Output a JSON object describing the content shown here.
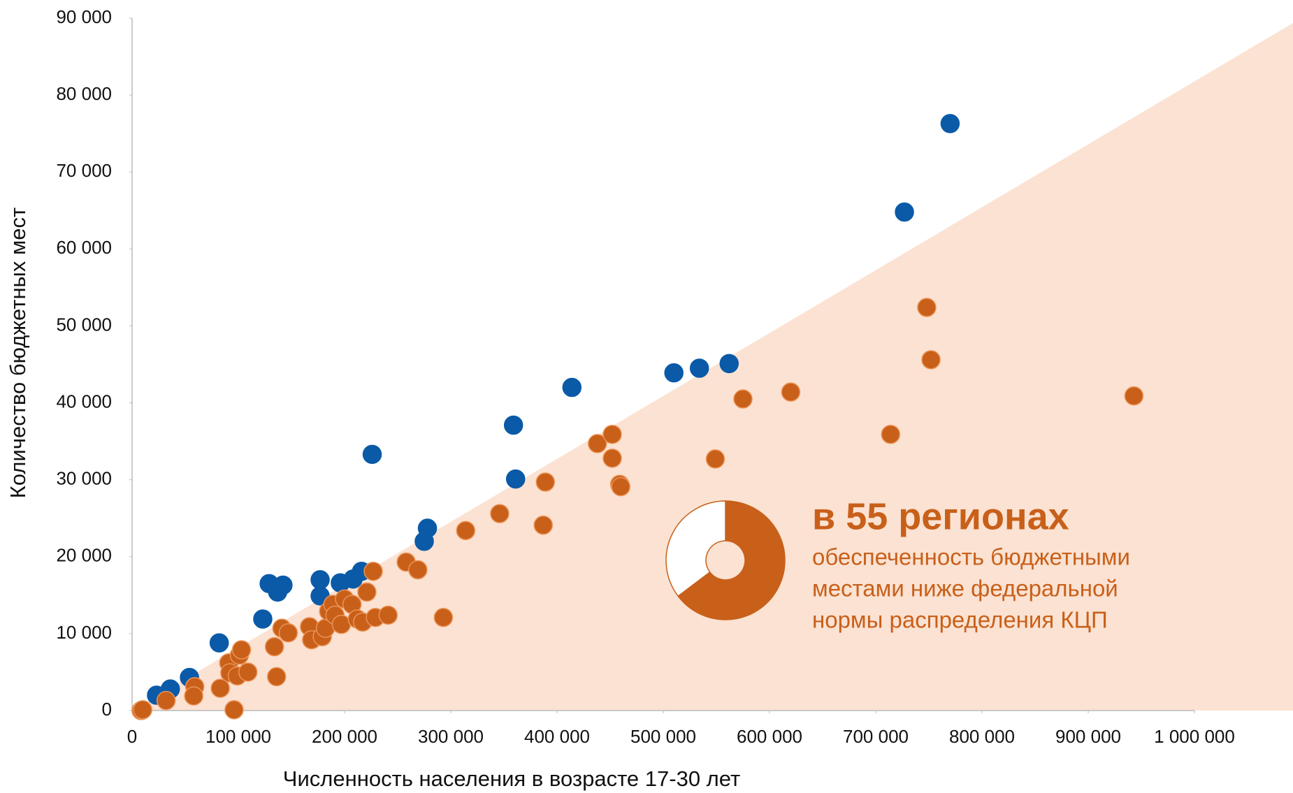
{
  "chart_data": {
    "type": "scatter",
    "x_label": "Численность населения в возрасте 17-30 лет",
    "y_label": "Количество бюджетных мест",
    "xlim": [
      0,
      1000000
    ],
    "ylim": [
      0,
      90000
    ],
    "xticks": [
      0,
      {
        "value": 100000,
        "label": "100 000"
      },
      {
        "value": 200000,
        "label": "200 000"
      },
      {
        "value": 300000,
        "label": "300 000"
      },
      {
        "value": 400000,
        "label": "400 000"
      },
      {
        "value": 500000,
        "label": "500 000"
      },
      {
        "value": 600000,
        "label": "600 000"
      },
      {
        "value": 700000,
        "label": "700 000"
      },
      {
        "value": 800000,
        "label": "800 000"
      },
      {
        "value": 900000,
        "label": "900 000"
      },
      {
        "value": 1000000,
        "label": "1 000 000"
      }
    ],
    "yticks": [
      0,
      {
        "value": 10000,
        "label": "10 000"
      },
      {
        "value": 20000,
        "label": "20 000"
      },
      {
        "value": 30000,
        "label": "30 000"
      },
      {
        "value": 40000,
        "label": "40 000"
      },
      {
        "value": 50000,
        "label": "50 000"
      },
      {
        "value": 60000,
        "label": "60 000"
      },
      {
        "value": 70000,
        "label": "70 000"
      },
      {
        "value": 80000,
        "label": "80 000"
      },
      {
        "value": 90000,
        "label": "90 000"
      }
    ],
    "series": [
      {
        "color": "#0a5aa8",
        "stroke": "#0a5aa8",
        "x": [
          23000,
          36000,
          54000,
          82000,
          123000,
          129000,
          137000,
          142000,
          177000,
          177000,
          196000,
          208000,
          216000,
          226000,
          275000,
          278000,
          359000,
          361000,
          414000,
          510000,
          534000,
          562000,
          727000,
          770000
        ],
        "values": [
          2000,
          2800,
          4300,
          8800,
          11900,
          16500,
          15400,
          16300,
          17000,
          14900,
          16600,
          17100,
          18100,
          33300,
          22000,
          23700,
          37100,
          30100,
          42000,
          43900,
          44500,
          45100,
          64800,
          76300
        ]
      },
      {
        "color": "#c8601a",
        "stroke": "#ec9356",
        "x": [
          8500,
          10000,
          32000,
          59000,
          58000,
          83000,
          91000,
          92000,
          96000,
          99000,
          101000,
          103000,
          109000,
          134000,
          136000,
          141000,
          147000,
          167000,
          169000,
          179000,
          182000,
          185000,
          189000,
          191000,
          197000,
          200000,
          207000,
          212000,
          217000,
          221000,
          227000,
          229000,
          241000,
          258000,
          269000,
          293000,
          314000,
          346000,
          387000,
          389000,
          438000,
          452000,
          452000,
          459000,
          460000,
          549000,
          575000,
          620000,
          714000,
          748000,
          752000,
          943000
        ],
        "values": [
          0,
          100,
          1300,
          3100,
          1900,
          2900,
          6200,
          4900,
          100,
          4500,
          7200,
          7900,
          5000,
          8300,
          4400,
          10700,
          10100,
          10900,
          9200,
          9600,
          10700,
          12900,
          13800,
          12400,
          11200,
          14500,
          13800,
          11900,
          11500,
          15400,
          18100,
          12100,
          12400,
          19300,
          18300,
          12100,
          23400,
          25600,
          24100,
          29700,
          34700,
          35900,
          32800,
          29400,
          29100,
          32700,
          40500,
          41400,
          35900,
          52400,
          45600,
          40900
        ]
      }
    ],
    "annotation": {
      "title": "в 55 регионах",
      "lines": [
        "обеспеченность бюджетными",
        "местами ниже федеральной",
        "нормы распределения КЦП"
      ],
      "color": "#c8601a",
      "donut": {
        "values": [
          55,
          30
        ],
        "colors": [
          "#c8601a",
          "#ffffff"
        ]
      }
    }
  }
}
